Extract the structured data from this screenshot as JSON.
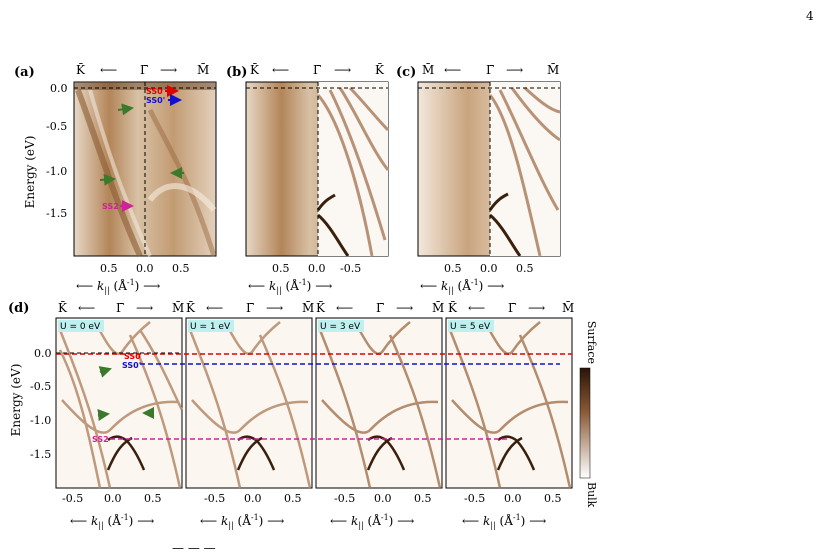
{
  "page_number": "4",
  "footer_fragment": "— — —",
  "y_axis_label": "Energy (eV)",
  "x_axis_label_arrows": "⟵",
  "x_axis_label_text": "k",
  "x_axis_sub": "||",
  "x_axis_unit": "(Å⁻¹)",
  "x_axis_right_arrow": "⟶",
  "colorbar": {
    "top_label": "Surface",
    "bottom_label": "Bulk"
  },
  "panels": {
    "a": {
      "label": "(a)",
      "top": [
        "K̄",
        "Γ̄",
        "M̄"
      ],
      "yticks": [
        "0.0",
        "-0.5",
        "-1.0",
        "-1.5"
      ],
      "xticks": [
        "0.5",
        "0.0",
        "0.5"
      ],
      "annotations": [
        {
          "text": "SS0",
          "color": "#e00000"
        },
        {
          "text": "SS0'",
          "color": "#1010d0"
        },
        {
          "text": "SS2",
          "color": "#d0209a"
        }
      ]
    },
    "b": {
      "label": "(b)",
      "top": [
        "K̄",
        "Γ̄",
        "K̄"
      ],
      "xticks": [
        "0.5",
        "0.0",
        "-0.5"
      ]
    },
    "c": {
      "label": "(c)",
      "top": [
        "M̄",
        "Γ̄",
        "M̄"
      ],
      "xticks": [
        "0.5",
        "0.0",
        "0.5"
      ]
    },
    "d": {
      "label": "(d)",
      "yticks": [
        "0.0",
        "-0.5",
        "-1.0",
        "-1.5"
      ],
      "subpanels": [
        {
          "u": "U = 0 eV",
          "top": [
            "K̄",
            "Γ̄",
            "M̄"
          ],
          "xticks": [
            "-0.5",
            "0.0",
            "0.5"
          ]
        },
        {
          "u": "U = 1 eV",
          "top": [
            "K̄",
            "Γ̄",
            "M̄"
          ],
          "xticks": [
            "-0.5",
            "0.0",
            "0.5"
          ]
        },
        {
          "u": "U = 3 eV",
          "top": [
            "K̄",
            "Γ̄",
            "M̄"
          ],
          "xticks": [
            "-0.5",
            "0.0",
            "0.5"
          ]
        },
        {
          "u": "U = 5 eV",
          "top": [
            "K̄",
            "Γ̄",
            "M̄"
          ],
          "xticks": [
            "-0.5",
            "0.0",
            "0.5"
          ]
        }
      ],
      "annotations": [
        {
          "text": "SS0",
          "color": "#e00000"
        },
        {
          "text": "SS0'",
          "color": "#1010d0"
        },
        {
          "text": "SS2",
          "color": "#d0209a"
        }
      ]
    }
  }
}
